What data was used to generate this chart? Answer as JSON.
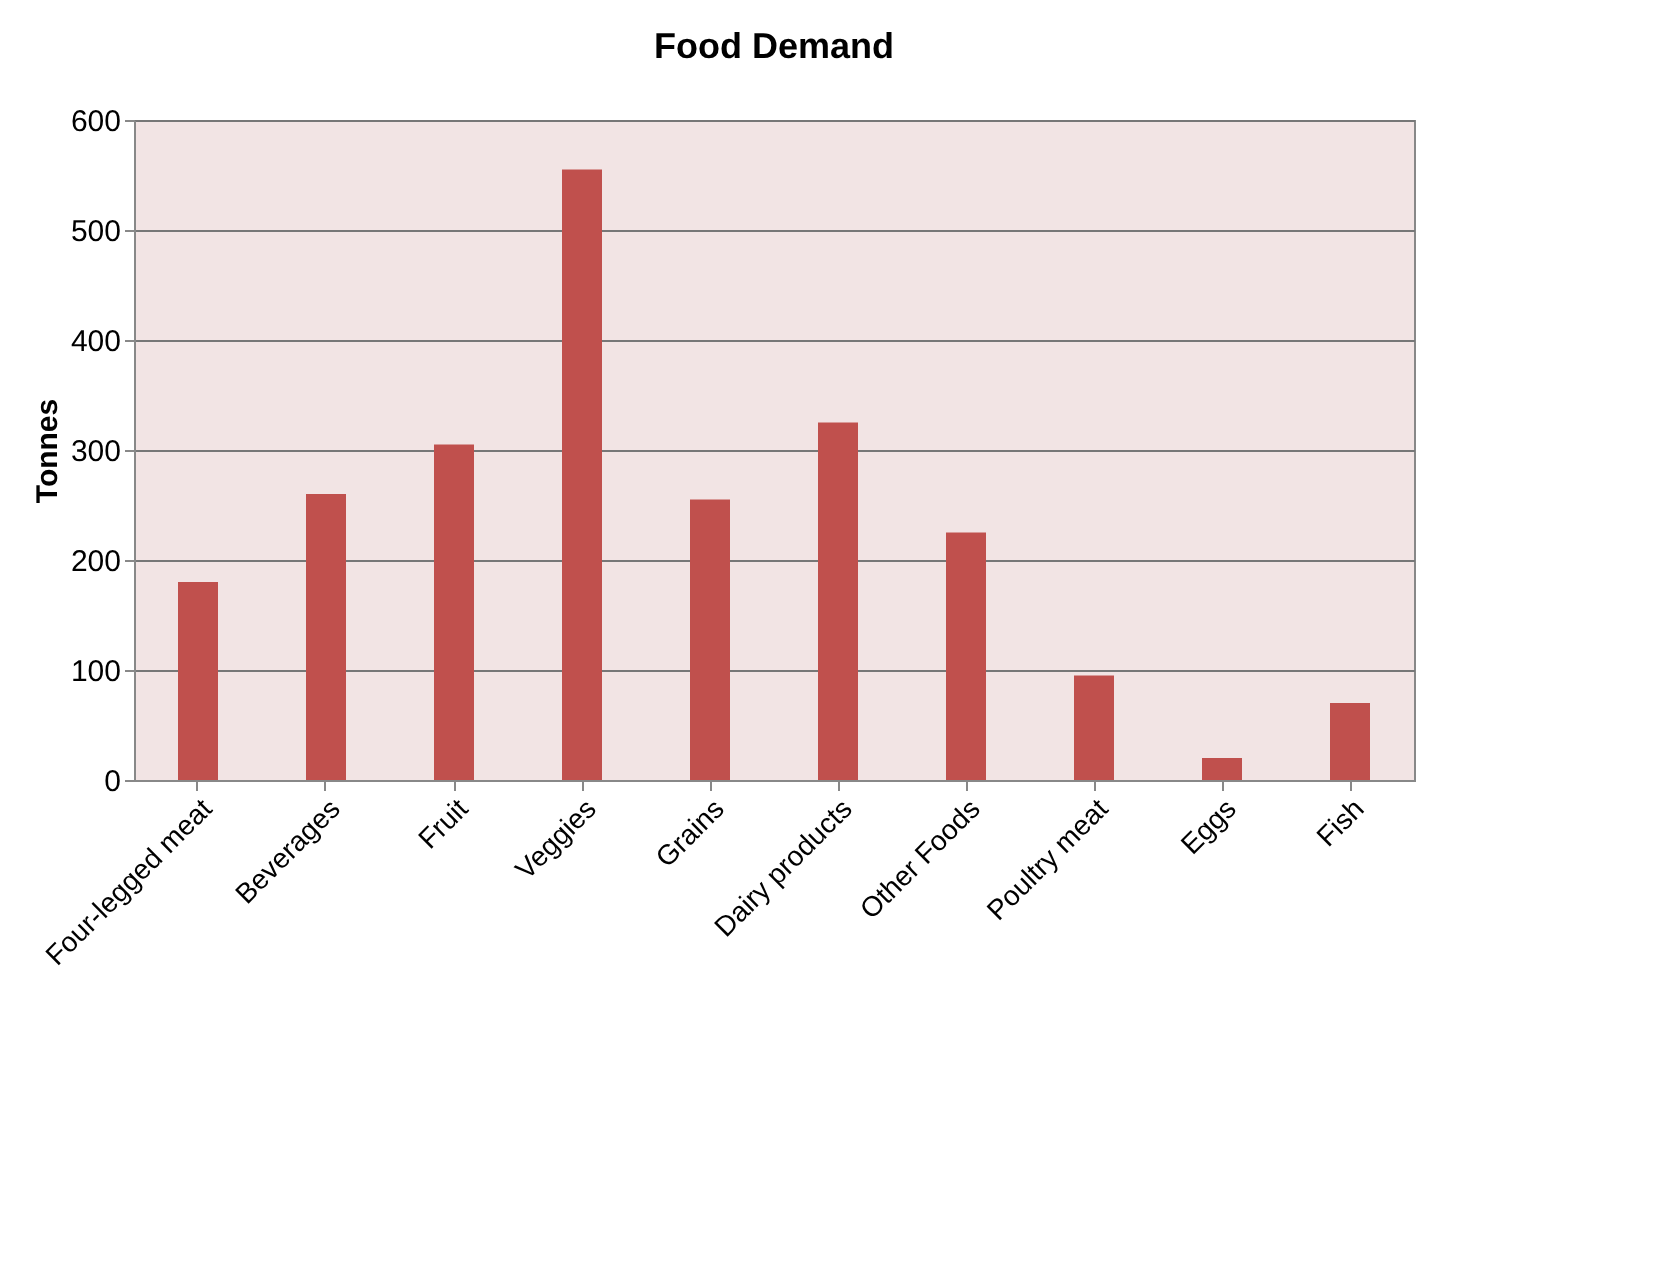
{
  "chart_data": {
    "type": "bar",
    "title": "Food Demand",
    "ylabel": "Tonnes",
    "categories": [
      "Four-legged meat",
      "Beverages",
      "Fruit",
      "Veggies",
      "Grains",
      "Dairy products",
      "Other Foods",
      "Poultry meat",
      "Eggs",
      "Fish"
    ],
    "values": [
      180,
      260,
      305,
      555,
      255,
      325,
      225,
      95,
      20,
      70
    ],
    "color": "#c0504d",
    "ylim": [
      0,
      600
    ],
    "yticks": [
      0,
      100,
      200,
      300,
      400,
      500,
      600
    ],
    "grid": "y"
  }
}
